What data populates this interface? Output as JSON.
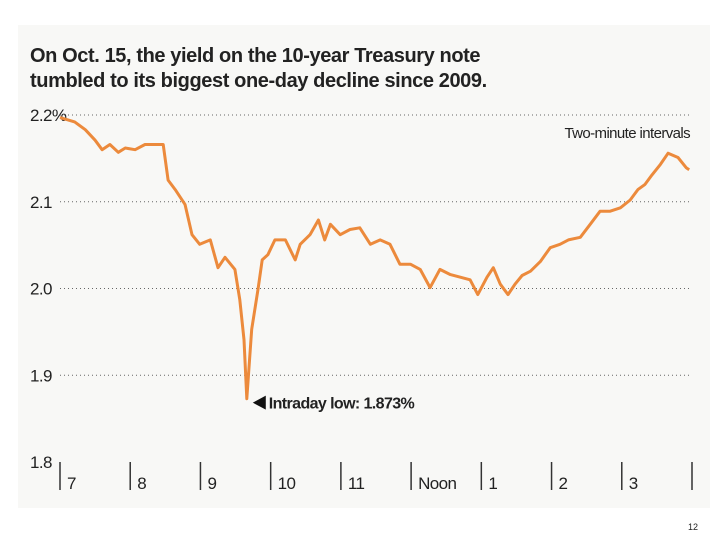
{
  "chart_data": {
    "type": "line",
    "title": [
      "On Oct. 15, the yield on the 10-year Treasury note",
      "tumbled to its biggest one-day decline since 2009."
    ],
    "annotations": [
      "Two-minute intervals",
      "Intraday low: 1.873%"
    ],
    "color": "#ec8a3c",
    "grid": true,
    "xlim": [
      7,
      16
    ],
    "xticks": [
      7,
      8,
      9,
      10,
      11,
      {
        "value": 12,
        "label": "Noon"
      },
      {
        "value": 13,
        "label": "1"
      },
      {
        "value": 14,
        "label": "2"
      },
      {
        "value": 15,
        "label": "3"
      }
    ],
    "ylim": [
      1.8,
      2.2
    ],
    "yticks": [
      {
        "value": 2.2,
        "label": "2.2%"
      },
      2.1,
      {
        "value": 2.0,
        "label": "2.0"
      },
      1.9,
      1.8
    ],
    "x": [
      7.0,
      7.21,
      7.36,
      7.5,
      7.6,
      7.71,
      7.83,
      7.93,
      8.07,
      8.21,
      8.35,
      8.47,
      8.54,
      8.64,
      8.78,
      8.88,
      8.99,
      9.14,
      9.25,
      9.35,
      9.49,
      9.56,
      9.62,
      9.66,
      9.73,
      9.82,
      9.88,
      9.96,
      10.06,
      10.21,
      10.35,
      10.42,
      10.56,
      10.68,
      10.77,
      10.85,
      10.99,
      11.13,
      11.27,
      11.42,
      11.56,
      11.7,
      11.84,
      11.99,
      12.13,
      12.27,
      12.41,
      12.56,
      12.7,
      12.84,
      12.95,
      13.08,
      13.17,
      13.27,
      13.38,
      13.48,
      13.58,
      13.7,
      13.84,
      13.98,
      14.12,
      14.24,
      14.41,
      14.55,
      14.69,
      14.83,
      14.98,
      15.12,
      15.23,
      15.33,
      15.43,
      15.55,
      15.66,
      15.8,
      15.92,
      15.96
    ],
    "values": [
      2.197,
      2.192,
      2.183,
      2.171,
      2.16,
      2.166,
      2.157,
      2.162,
      2.16,
      2.166,
      2.166,
      2.166,
      2.125,
      2.114,
      2.097,
      2.062,
      2.051,
      2.056,
      2.024,
      2.036,
      2.022,
      1.987,
      1.941,
      1.873,
      1.953,
      1.999,
      2.033,
      2.039,
      2.056,
      2.056,
      2.033,
      2.051,
      2.062,
      2.079,
      2.056,
      2.074,
      2.062,
      2.068,
      2.07,
      2.051,
      2.056,
      2.051,
      2.028,
      2.028,
      2.022,
      2.001,
      2.022,
      2.016,
      2.013,
      2.01,
      1.993,
      2.013,
      2.024,
      2.005,
      1.993,
      2.005,
      2.015,
      2.02,
      2.031,
      2.047,
      2.051,
      2.056,
      2.059,
      2.074,
      2.089,
      2.089,
      2.093,
      2.102,
      2.114,
      2.12,
      2.131,
      2.143,
      2.156,
      2.151,
      2.139,
      2.137
    ]
  },
  "page_number": "12"
}
